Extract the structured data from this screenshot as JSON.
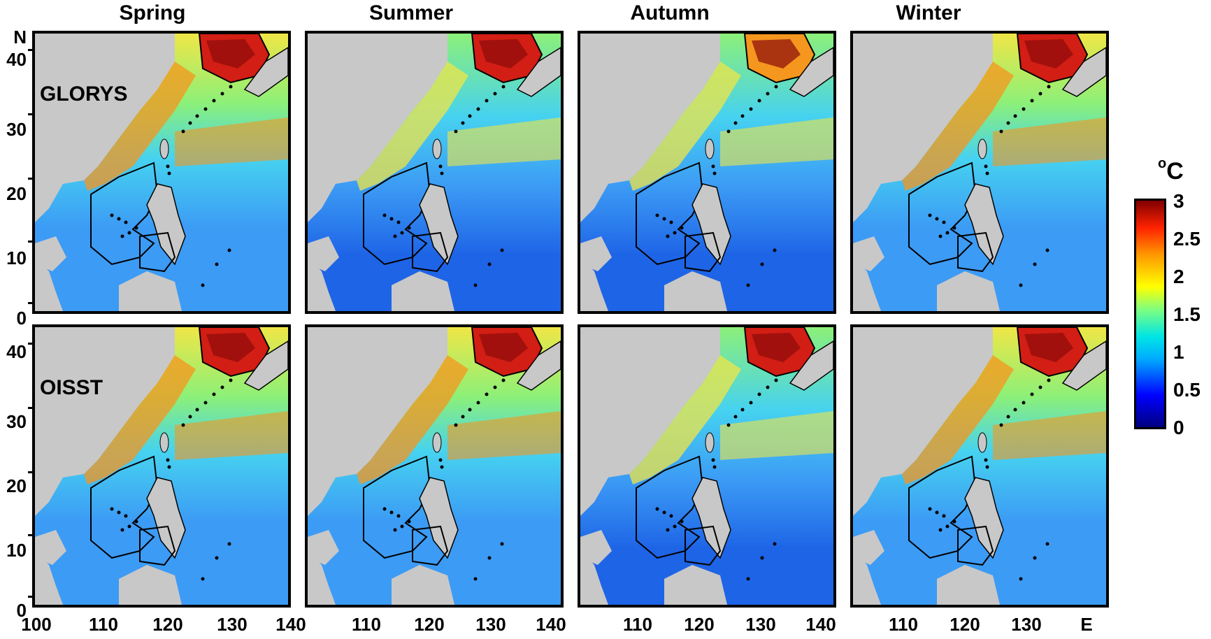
{
  "figure": {
    "columns": [
      "Spring",
      "Summer",
      "Autumn",
      "Winter"
    ],
    "rows": [
      "GLORYS",
      "OISST"
    ],
    "y_ticks": [
      "40",
      "30",
      "20",
      "10",
      "0"
    ],
    "y_hemisphere": "N",
    "x_ticks_first": [
      "100",
      "110",
      "120",
      "130",
      "140"
    ],
    "x_ticks_other": [
      "110",
      "120",
      "130",
      "140"
    ],
    "x_ticks_last": [
      "110",
      "120",
      "130",
      "E"
    ],
    "colorbar": {
      "unit": "C",
      "unit_prefix": "o",
      "ticks": [
        "3",
        "2.5",
        "2",
        "1.5",
        "1",
        "0.5",
        "0"
      ],
      "range": [
        0,
        3
      ],
      "colormap": "jet"
    },
    "panel_intensity": {
      "GLORYS": {
        "Spring": 0.55,
        "Summer": 0.5,
        "Autumn": 0.35,
        "Winter": 0.55
      },
      "OISST": {
        "Spring": 0.62,
        "Summer": 0.6,
        "Autumn": 0.45,
        "Winter": 0.55
      }
    },
    "colors": {
      "land": "#c8c8c8",
      "deep_blue": "#1e64e6",
      "mid_blue": "#3c9bf5",
      "cyan": "#46d2f0",
      "green": "#8cf078",
      "yellow": "#f0e646",
      "orange": "#f5961e",
      "red": "#d21e14",
      "dark_red": "#8c0a0a"
    }
  }
}
